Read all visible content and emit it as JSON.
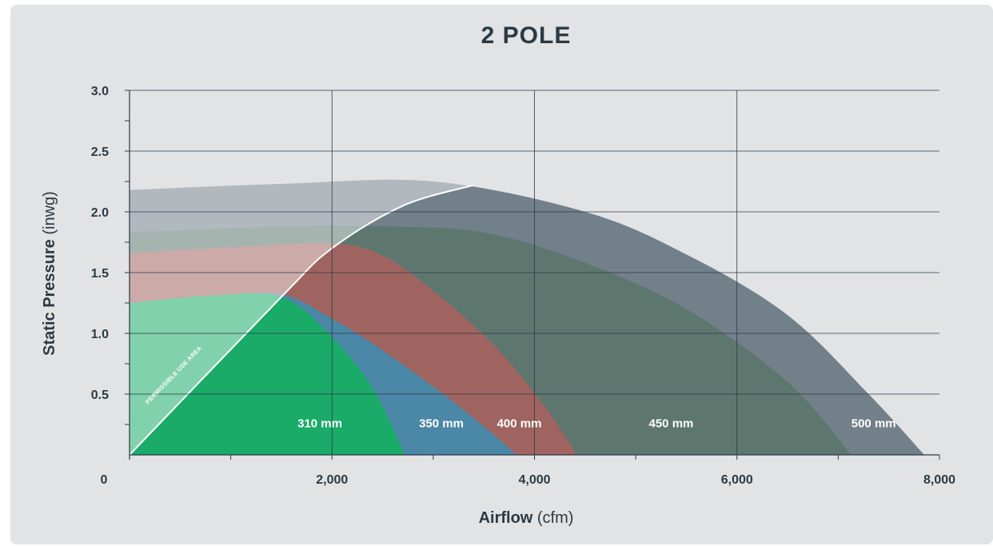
{
  "chart_data": {
    "type": "area",
    "title": "2 POLE",
    "xlabel": {
      "bold": "Airflow",
      "unit": "(cfm)"
    },
    "ylabel": {
      "bold": "Static Pressure",
      "unit": "(inwg)"
    },
    "xlim": [
      0,
      8000
    ],
    "ylim": [
      0,
      3.0
    ],
    "x_ticks": [
      0,
      2000,
      4000,
      6000,
      8000
    ],
    "x_tick_labels": [
      "0",
      "2,000",
      "4,000",
      "6,000",
      "8,000"
    ],
    "y_ticks": [
      0.5,
      1.0,
      1.5,
      2.0,
      2.5,
      3.0
    ],
    "y_tick_labels": [
      "0.5",
      "1.0",
      "1.5",
      "2.0",
      "2.5",
      "3.0"
    ],
    "grid": true,
    "annotation": "PERMISSIBLE USE AREA",
    "series": [
      {
        "name": "500 mm",
        "color": "#72808a",
        "label_at": [
          7350,
          0.26
        ],
        "points": [
          [
            0,
            2.18
          ],
          [
            1500,
            2.23
          ],
          [
            3000,
            2.25
          ],
          [
            4500,
            2.0
          ],
          [
            5500,
            1.65
          ],
          [
            6500,
            1.15
          ],
          [
            7300,
            0.5
          ],
          [
            7850,
            0.0
          ]
        ]
      },
      {
        "name": "450 mm",
        "color": "#5d776f",
        "label_at": [
          5350,
          0.26
        ],
        "points": [
          [
            0,
            1.83
          ],
          [
            1500,
            1.88
          ],
          [
            2500,
            1.88
          ],
          [
            3500,
            1.83
          ],
          [
            4500,
            1.58
          ],
          [
            5500,
            1.2
          ],
          [
            6500,
            0.6
          ],
          [
            7130,
            0.0
          ]
        ]
      },
      {
        "name": "400 mm",
        "color": "#a06460",
        "label_at": [
          3850,
          0.26
        ],
        "points": [
          [
            0,
            1.66
          ],
          [
            1000,
            1.71
          ],
          [
            2000,
            1.74
          ],
          [
            2500,
            1.64
          ],
          [
            3000,
            1.35
          ],
          [
            3600,
            0.9
          ],
          [
            4100,
            0.4
          ],
          [
            4420,
            0.0
          ]
        ]
      },
      {
        "name": "350 mm",
        "color": "#4b87a6",
        "label_at": [
          3080,
          0.26
        ],
        "points": [
          [
            0,
            1.25
          ],
          [
            800,
            1.31
          ],
          [
            1500,
            1.32
          ],
          [
            2000,
            1.12
          ],
          [
            2500,
            0.86
          ],
          [
            3100,
            0.5
          ],
          [
            3550,
            0.2
          ],
          [
            3820,
            0.0
          ]
        ]
      },
      {
        "name": "310 mm",
        "color": "#1aab68",
        "label_at": [
          1880,
          0.26
        ],
        "points": [
          [
            1500,
            1.3
          ],
          [
            2000,
            0.97
          ],
          [
            2400,
            0.55
          ],
          [
            2720,
            0.0
          ]
        ]
      }
    ],
    "boundary": [
      [
        0,
        0.0
      ],
      [
        1500,
        1.3
      ],
      [
        2000,
        1.7
      ],
      [
        2700,
        2.05
      ],
      [
        3400,
        2.22
      ]
    ]
  }
}
